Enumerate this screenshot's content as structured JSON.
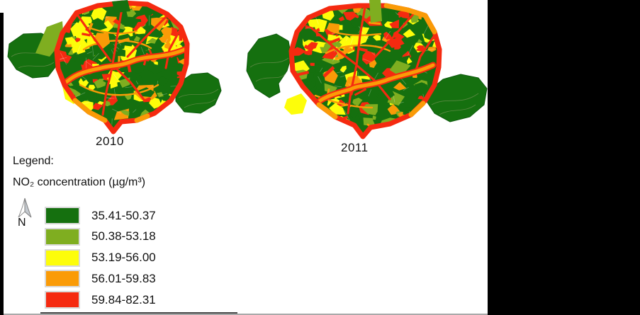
{
  "figure": {
    "maps": [
      {
        "year": "2010"
      },
      {
        "year": "2011"
      }
    ],
    "legend": {
      "title": "Legend:",
      "subtitle": "NO₂ concentration (µg/m³)",
      "north_label": "N",
      "classes": [
        {
          "range": "35.41-50.37",
          "color": "#15700f"
        },
        {
          "range": "50.38-53.18",
          "color": "#7fae20"
        },
        {
          "range": "53.19-56.00",
          "color": "#fdfd0a"
        },
        {
          "range": "56.01-59.83",
          "color": "#fa9b07"
        },
        {
          "range": "59.84-82.31",
          "color": "#f52a10"
        }
      ]
    }
  }
}
